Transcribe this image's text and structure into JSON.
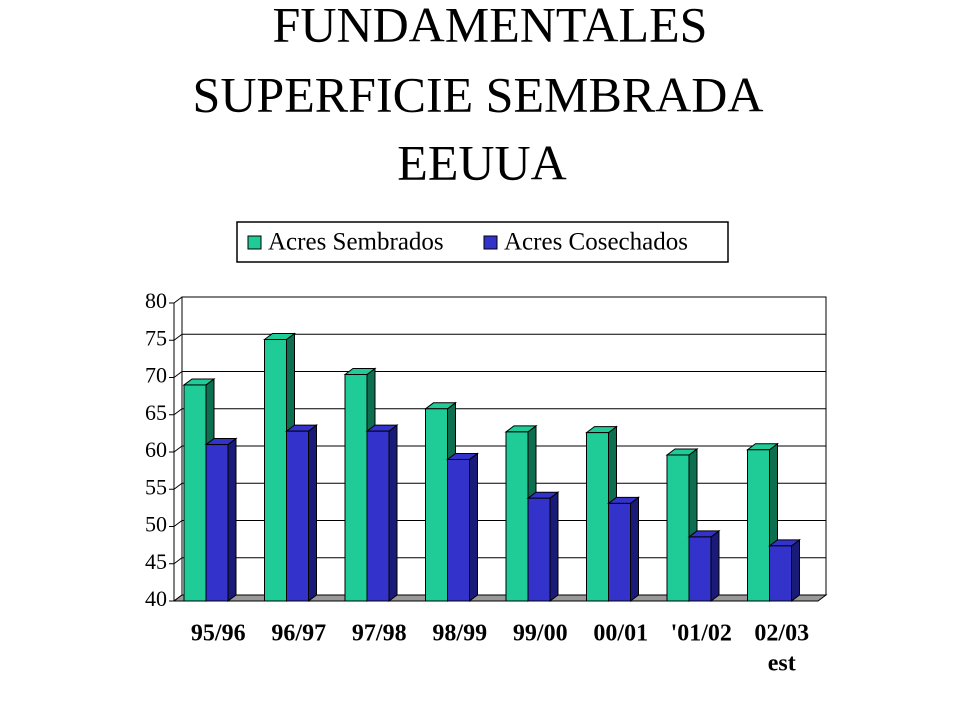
{
  "chart_data": {
    "type": "bar3d",
    "title": [
      "FUNDAMENTALES",
      "SUPERFICIE SEMBRADA",
      "EEUUA"
    ],
    "categories": [
      "95/96",
      "96/97",
      "97/98",
      "98/99",
      "99/00",
      "00/01",
      "'01/02",
      "02/03"
    ],
    "annotation": "est",
    "series": [
      {
        "name": "Acres Sembrados",
        "color": "#1fcc98",
        "side": "#0e6e50",
        "values": [
          69.0,
          75.1,
          70.4,
          65.8,
          62.7,
          62.6,
          59.6,
          60.3
        ]
      },
      {
        "name": "Acres Cosechados",
        "color": "#3333cc",
        "side": "#1a1a78",
        "values": [
          61.0,
          62.8,
          62.8,
          59.0,
          53.8,
          53.1,
          48.6,
          47.4
        ]
      }
    ],
    "ylim": [
      40,
      80
    ],
    "yticks": [
      40,
      45,
      50,
      55,
      60,
      65,
      70,
      75,
      80
    ],
    "grid": true
  }
}
